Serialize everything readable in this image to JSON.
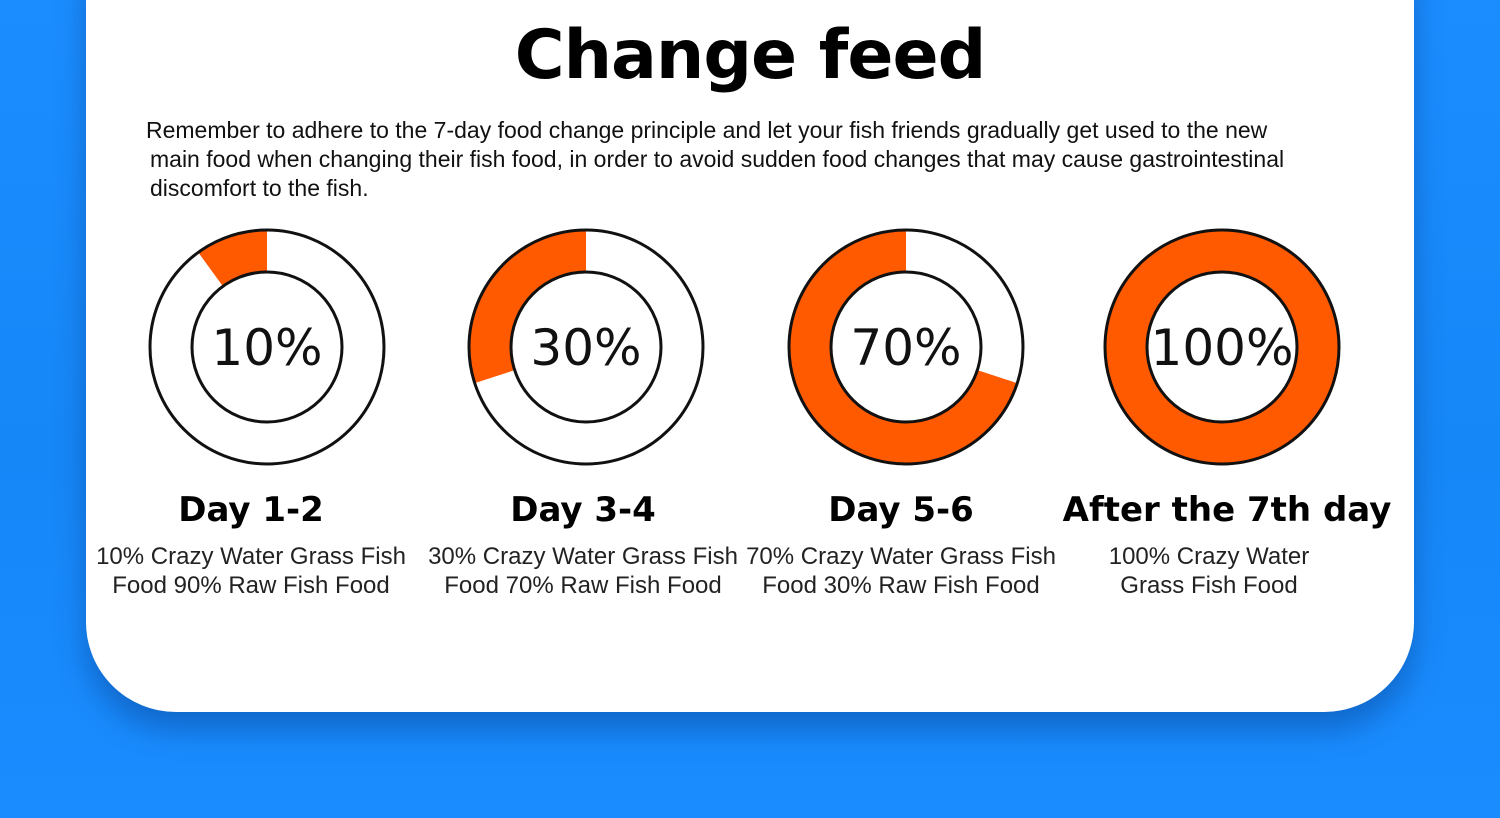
{
  "page": {
    "title": "Change feed",
    "description_lines": [
      "Remember to adhere to the 7-day food change principle and let your fish friends gradually get used to the new",
      "main food when changing their fish food, in order to avoid sudden food changes that may cause gastrointestinal",
      "discomfort to the fish."
    ]
  },
  "colors": {
    "background": "#1a8cff",
    "card": "#ffffff",
    "accent": "#ff5a00",
    "ring_outline": "#111111"
  },
  "chart_data": {
    "type": "pie",
    "series": [
      {
        "value": 10,
        "center_label": "10%",
        "title": "Day 1-2",
        "description_lines": [
          "10% Crazy Water Grass Fish",
          "Food 90% Raw Fish Food"
        ]
      },
      {
        "value": 30,
        "center_label": "30%",
        "title": "Day 3-4",
        "description_lines": [
          "30% Crazy Water Grass Fish",
          "Food 70% Raw Fish Food"
        ]
      },
      {
        "value": 70,
        "center_label": "70%",
        "title": "Day 5-6",
        "description_lines": [
          "70% Crazy Water Grass Fish",
          "Food 30% Raw Fish Food"
        ]
      },
      {
        "value": 100,
        "center_label": "100%",
        "title": "After the 7th day",
        "description_lines": [
          "100% Crazy Water",
          "Grass Fish Food"
        ]
      }
    ]
  }
}
